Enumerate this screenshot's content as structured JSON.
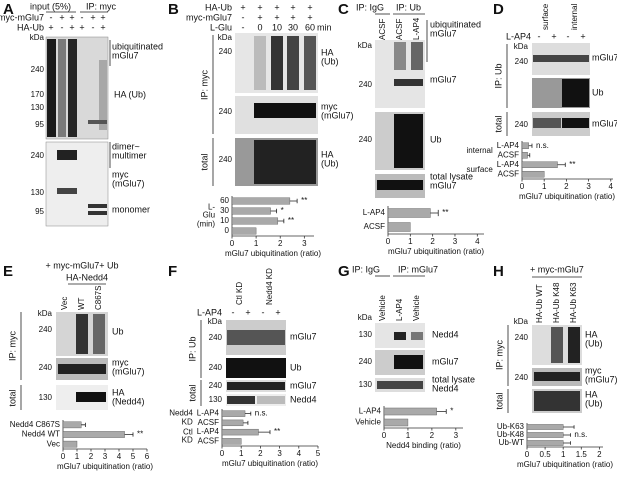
{
  "panels": [
    {
      "letter": "A",
      "header": [
        "input (5%)",
        "IP: myc"
      ],
      "conditions": [
        {
          "label": "myc-mGlu7",
          "signs": [
            "-",
            "+",
            "+",
            "-",
            "+",
            "+"
          ]
        },
        {
          "label": "HA-Ub",
          "signs": [
            "+",
            "-",
            "+",
            "+",
            "-",
            "+"
          ]
        }
      ],
      "markers": [
        "kDa",
        240,
        170,
        130,
        95,
        240,
        130,
        95
      ],
      "bands": [
        "ubiquitinated mGlu7",
        "HA (Ub)",
        "dimer~ multimer",
        "myc (mGlu7)",
        "monomer"
      ]
    },
    {
      "letter": "B",
      "header": [
        "min"
      ],
      "conditions": [
        {
          "label": "HA-Ub",
          "signs": [
            "+",
            "+",
            "+",
            "+",
            "+"
          ]
        },
        {
          "label": "myc-mGlu7",
          "signs": [
            "-",
            "+",
            "+",
            "+",
            "+"
          ]
        },
        {
          "label": "L-Glu",
          "signs": [
            "-",
            "0",
            "10",
            "30",
            "60"
          ]
        }
      ],
      "markers": [
        "kDa",
        240,
        240,
        240
      ],
      "side": [
        "IP: myc",
        "total"
      ],
      "bands": [
        "HA (Ub)",
        "myc (mGlu7)",
        "HA (Ub)"
      ]
    },
    {
      "letter": "C",
      "header": [
        "IP: IgG",
        "IP: Ub"
      ],
      "lanes": [
        "ACSF",
        "ACSF",
        "L-AP4"
      ],
      "markers": [
        "kDa",
        240,
        240
      ],
      "bands": [
        "ubiquitinated mGlu7",
        "mGlu7",
        "Ub",
        "total lysate mGlu7"
      ]
    },
    {
      "letter": "D",
      "lanes": [
        "surface",
        "internal"
      ],
      "conditions": [
        {
          "label": "L-AP4",
          "signs": [
            "-",
            "+",
            "-",
            "+"
          ]
        }
      ],
      "markers": [
        "kDa",
        240,
        240
      ],
      "side": [
        "IP: Ub",
        "total"
      ],
      "bands": [
        "mGlu7",
        "Ub",
        "mGlu7"
      ]
    },
    {
      "letter": "E",
      "header": [
        "+ myc-mGlu7+ Ub",
        "HA-Nedd4"
      ],
      "lanes": [
        "Vec",
        "WT",
        "C867S"
      ],
      "markers": [
        "kDa",
        240,
        240,
        130
      ],
      "side": [
        "IP: myc",
        "total"
      ],
      "bands": [
        "Ub",
        "myc (mGlu7)",
        "HA (Nedd4)"
      ]
    },
    {
      "letter": "F",
      "lanes": [
        "Ctl KD",
        "Nedd4 KD"
      ],
      "conditions": [
        {
          "label": "L-AP4",
          "signs": [
            "-",
            "+",
            "-",
            "+"
          ]
        }
      ],
      "markers": [
        "kDa",
        240,
        240,
        240,
        130
      ],
      "side": [
        "IP: Ub",
        "total"
      ],
      "bands": [
        "mGlu7",
        "Ub",
        "mGlu7",
        "Nedd4"
      ]
    },
    {
      "letter": "G",
      "header": [
        "IP: IgG",
        "IP: mGlu7"
      ],
      "lanes": [
        "Vehicle",
        "L-AP4",
        "Vehicle"
      ],
      "markers": [
        "kDa",
        130,
        240,
        130
      ],
      "bands": [
        "Nedd4",
        "mGlu7",
        "total lysate Nedd4"
      ]
    },
    {
      "letter": "H",
      "header": [
        "+ myc-mGlu7"
      ],
      "lanes": [
        "HA-Ub WT",
        "HA-Ub K48",
        "HA-Ub K63"
      ],
      "markers": [
        "kDa",
        240,
        240
      ],
      "side": [
        "IP: myc",
        "total"
      ],
      "bands": [
        "HA (Ub)",
        "myc (mGlu7)",
        "HA (Ub)"
      ]
    }
  ],
  "chart_data": [
    {
      "type": "bar",
      "orientation": "horizontal",
      "ylabel": "L-Glu (min)",
      "categories": [
        "60",
        "30",
        "10",
        "0"
      ],
      "values": [
        2.4,
        1.6,
        1.9,
        1
      ],
      "errors": [
        0.3,
        0.25,
        0.25,
        null
      ],
      "significance": [
        "**",
        "*",
        "**",
        null
      ],
      "color": "#a9a9a9",
      "xlim": [
        0,
        3.4
      ],
      "xticks": [
        0,
        1,
        2,
        3
      ],
      "xlabel": "mGlu7 ubiquitination (ratio)"
    },
    {
      "type": "bar",
      "orientation": "horizontal",
      "categories": [
        "L-AP4",
        "ACSF"
      ],
      "values": [
        1.9,
        1
      ],
      "errors": [
        0.35,
        null
      ],
      "significance": [
        "**",
        null
      ],
      "color": "#a9a9a9",
      "xlim": [
        0,
        4.3
      ],
      "xticks": [
        0,
        1,
        2,
        3,
        4
      ],
      "xlabel": "mGlu7 ubiquitination (ratio)"
    },
    {
      "type": "bar",
      "orientation": "horizontal",
      "groups": [
        {
          "name": "internal",
          "size": 2
        },
        {
          "name": "surface",
          "size": 2
        }
      ],
      "categories": [
        "L-AP4",
        "ACSF",
        "L-AP4",
        "ACSF"
      ],
      "values": [
        0.3,
        0.25,
        1.6,
        1
      ],
      "errors": [
        0.15,
        0.1,
        0.35,
        null
      ],
      "significance": [
        "n.s.",
        null,
        "**",
        null
      ],
      "color": "#a9a9a9",
      "xlim": [
        0,
        4.1
      ],
      "xticks": [
        0,
        1,
        2,
        3,
        4
      ],
      "xlabel": "mGlu7 ubiquitination (ratio)"
    },
    {
      "type": "bar",
      "orientation": "horizontal",
      "categories": [
        "Nedd4 C867S",
        "Nedd4 WT",
        "Vec"
      ],
      "values": [
        1.3,
        4.4,
        1
      ],
      "errors": [
        0.3,
        0.6,
        null
      ],
      "significance": [
        null,
        "**",
        null
      ],
      "color": "#a9a9a9",
      "xlim": [
        0,
        6
      ],
      "xticks": [
        0,
        1,
        2,
        3,
        4,
        5,
        6
      ],
      "xlabel": "mGlu7 ubiquitination (ratio)"
    },
    {
      "type": "bar",
      "orientation": "horizontal",
      "groups": [
        {
          "name": "Nedd4 KD",
          "size": 2
        },
        {
          "name": "Ctl KD",
          "size": 2
        }
      ],
      "categories": [
        "L-AP4",
        "ACSF",
        "L-AP4",
        "ACSF"
      ],
      "values": [
        1.2,
        1.1,
        1.9,
        1
      ],
      "errors": [
        0.3,
        0.25,
        0.6,
        null
      ],
      "significance": [
        "n.s.",
        null,
        "**",
        null
      ],
      "color": "#a9a9a9",
      "xlim": [
        0,
        5
      ],
      "xticks": [
        0,
        1,
        2,
        3,
        4,
        5
      ],
      "xlabel": "mGlu7 ubiquitination (ratio)"
    },
    {
      "type": "bar",
      "orientation": "horizontal",
      "categories": [
        "L-AP4",
        "Vehicle"
      ],
      "values": [
        2.2,
        1
      ],
      "errors": [
        0.4,
        null
      ],
      "significance": [
        "*",
        null
      ],
      "color": "#a9a9a9",
      "xlim": [
        0,
        3.3
      ],
      "xticks": [
        0,
        1,
        2,
        3
      ],
      "xlabel": "Nedd4 binding (ratio)"
    },
    {
      "type": "bar",
      "orientation": "horizontal",
      "categories": [
        "Ub-K63",
        "Ub-K48",
        "Ub-WT"
      ],
      "values": [
        1,
        1,
        1
      ],
      "errors": [
        0.3,
        0.2,
        0.2
      ],
      "significance": [
        null,
        "n.s.",
        null
      ],
      "color": "#a9a9a9",
      "xlim": [
        0,
        2.1
      ],
      "xticks": [
        0,
        0.5,
        1,
        1.5,
        2
      ],
      "xlabel": "mGlu7 ubiquitination (ratio)"
    }
  ]
}
